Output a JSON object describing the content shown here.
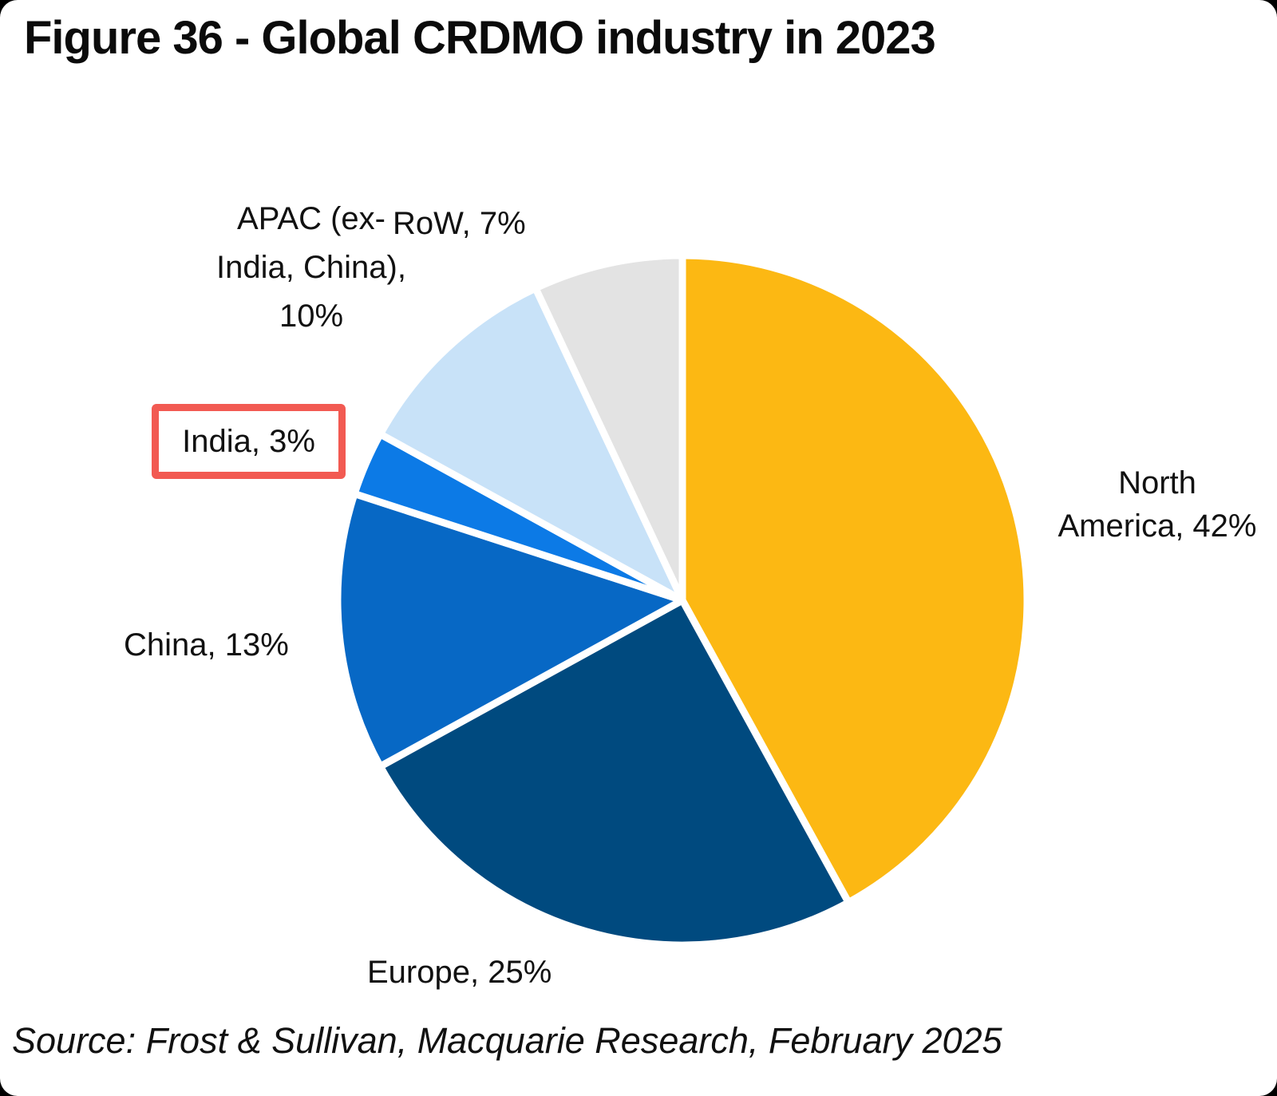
{
  "figure": {
    "title": "Figure 36 - Global CRDMO industry in 2023",
    "source": "Source: Frost & Sullivan, Macquarie Research, February 2025"
  },
  "chart_data": {
    "type": "pie",
    "title": "Figure 36 - Global CRDMO industry in 2023",
    "unit": "percent",
    "start_angle": "12 o'clock",
    "direction": "clockwise",
    "slices": [
      {
        "label": "North America",
        "value": 42,
        "color": "#FCB813"
      },
      {
        "label": "Europe",
        "value": 25,
        "color": "#004A7F"
      },
      {
        "label": "China",
        "value": 13,
        "color": "#0768C5"
      },
      {
        "label": "India",
        "value": 3,
        "color": "#0C7AE6",
        "highlighted": true
      },
      {
        "label": "APAC (ex-India, China)",
        "value": 10,
        "color": "#C8E2F8"
      },
      {
        "label": "RoW",
        "value": 7,
        "color": "#E3E3E3"
      }
    ],
    "labels": {
      "north_america": {
        "lines": [
          "North",
          "America, 42%"
        ]
      },
      "europe": {
        "text": "Europe, 25%"
      },
      "china": {
        "text": "China, 13%"
      },
      "india": {
        "text": "India, 3%",
        "highlight_box_color": "#F25A52"
      },
      "apac": {
        "lines": [
          "APAC (ex-",
          "India, China),",
          "10%"
        ]
      },
      "row": {
        "text": "RoW, 7%"
      }
    },
    "source": "Source: Frost & Sullivan, Macquarie Research, February 2025"
  }
}
